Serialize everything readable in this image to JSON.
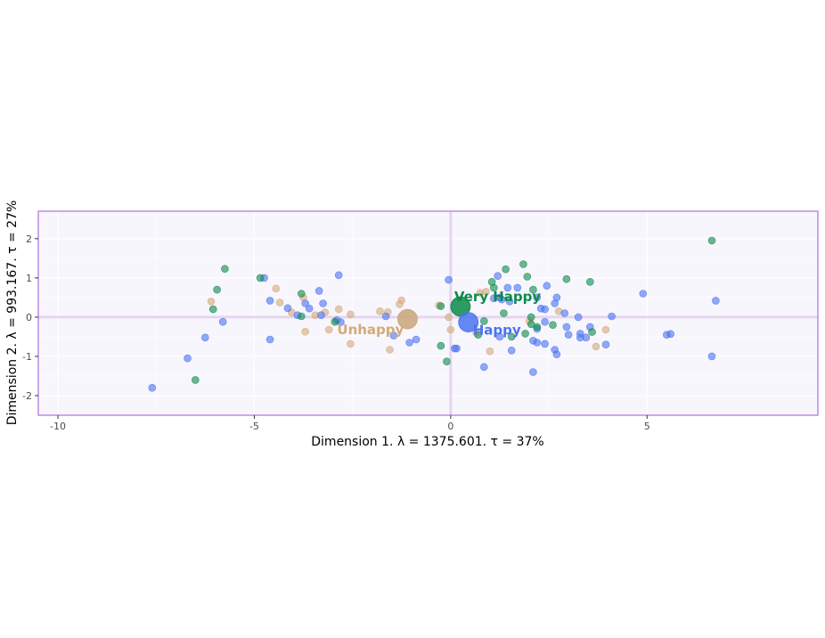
{
  "chart_data": {
    "type": "scatter",
    "xlabel": "Dimension 1.   λ = 1375.601.  τ = 37%",
    "ylabel": "Dimension 2.   λ = 993.167.   τ = 27%",
    "xlim": [
      -10.5,
      9.35
    ],
    "ylim": [
      -2.5,
      2.7
    ],
    "x_ticks": [
      -10,
      -5,
      0,
      5
    ],
    "y_ticks": [
      -2,
      -1,
      0,
      1,
      2
    ],
    "x_tick_labels": [
      "-10",
      "-5",
      "0",
      "5"
    ],
    "y_tick_labels": [
      "-2",
      "-1",
      "0",
      "1",
      "2"
    ],
    "grid": true,
    "colors": {
      "panel_background": "#f8f6fd",
      "panel_border": "#b070e0",
      "reference_line": "#e6d5f0",
      "very_happy": "#0b8a4a",
      "happy": "#4a73f0",
      "unhappy": "#d4aa78"
    },
    "categories_centroids": [
      {
        "label": "Very Happy",
        "x": 0.25,
        "y": 0.27,
        "color": "#0b8a4a",
        "label_color": "#0b8a4a"
      },
      {
        "label": "Happy",
        "x": 0.45,
        "y": -0.13,
        "color": "#4a73f0",
        "label_color": "#4a73f0"
      },
      {
        "label": "Unhappy",
        "x": -1.1,
        "y": -0.05,
        "color": "#c9a57a",
        "label_color": "#d4aa78"
      }
    ],
    "series": [
      {
        "name": "Very Happy",
        "color": "#0b8a4a",
        "points": [
          [
            6.65,
            1.95
          ],
          [
            -5.75,
            1.23
          ],
          [
            -4.85,
            1.0
          ],
          [
            -5.95,
            0.7
          ],
          [
            -6.05,
            0.2
          ],
          [
            -6.5,
            -1.6
          ],
          [
            -3.8,
            0.6
          ],
          [
            -3.8,
            0.02
          ],
          [
            -2.95,
            -0.12
          ],
          [
            -0.25,
            0.28
          ],
          [
            -0.25,
            -0.73
          ],
          [
            -0.1,
            -1.13
          ],
          [
            1.05,
            0.9
          ],
          [
            1.4,
            1.22
          ],
          [
            1.85,
            1.35
          ],
          [
            1.95,
            1.03
          ],
          [
            1.1,
            0.75
          ],
          [
            2.1,
            0.7
          ],
          [
            2.95,
            0.97
          ],
          [
            3.55,
            0.9
          ],
          [
            1.35,
            0.1
          ],
          [
            0.85,
            -0.1
          ],
          [
            0.7,
            -0.45
          ],
          [
            1.55,
            -0.5
          ],
          [
            1.9,
            -0.42
          ],
          [
            2.05,
            0.0
          ],
          [
            2.2,
            -0.25
          ],
          [
            2.6,
            -0.2
          ],
          [
            3.6,
            -0.38
          ],
          [
            2.05,
            -0.18
          ]
        ]
      },
      {
        "name": "Happy",
        "color": "#4a73f0",
        "points": [
          [
            -7.6,
            -1.8
          ],
          [
            -6.7,
            -1.05
          ],
          [
            -6.25,
            -0.52
          ],
          [
            -5.8,
            -0.12
          ],
          [
            -4.75,
            1.0
          ],
          [
            -4.6,
            0.42
          ],
          [
            -4.6,
            -0.57
          ],
          [
            -4.15,
            0.23
          ],
          [
            -3.9,
            0.05
          ],
          [
            -3.7,
            0.35
          ],
          [
            -3.6,
            0.22
          ],
          [
            -3.35,
            0.67
          ],
          [
            -3.25,
            0.35
          ],
          [
            -3.3,
            0.05
          ],
          [
            -2.85,
            1.07
          ],
          [
            -2.9,
            -0.08
          ],
          [
            -2.8,
            -0.13
          ],
          [
            -1.65,
            0.02
          ],
          [
            -1.45,
            -0.47
          ],
          [
            -1.05,
            -0.65
          ],
          [
            -0.88,
            -0.57
          ],
          [
            -0.05,
            0.95
          ],
          [
            0.1,
            -0.8
          ],
          [
            0.15,
            -0.8
          ],
          [
            0.85,
            -1.27
          ],
          [
            1.2,
            1.05
          ],
          [
            1.45,
            0.75
          ],
          [
            1.7,
            0.75
          ],
          [
            1.25,
            0.5
          ],
          [
            1.5,
            0.4
          ],
          [
            2.2,
            0.5
          ],
          [
            2.45,
            0.8
          ],
          [
            2.7,
            0.5
          ],
          [
            2.3,
            0.22
          ],
          [
            2.4,
            0.2
          ],
          [
            2.65,
            0.35
          ],
          [
            2.9,
            0.1
          ],
          [
            3.25,
            0.0
          ],
          [
            4.1,
            0.02
          ],
          [
            3.55,
            -0.25
          ],
          [
            2.95,
            -0.25
          ],
          [
            3.0,
            -0.45
          ],
          [
            3.3,
            -0.42
          ],
          [
            3.3,
            -0.52
          ],
          [
            3.45,
            -0.52
          ],
          [
            2.1,
            -0.6
          ],
          [
            2.2,
            -0.65
          ],
          [
            2.4,
            -0.68
          ],
          [
            2.65,
            -0.83
          ],
          [
            2.7,
            -0.95
          ],
          [
            1.55,
            -0.85
          ],
          [
            2.1,
            -1.4
          ],
          [
            1.25,
            -0.5
          ],
          [
            2.2,
            -0.3
          ],
          [
            2.4,
            -0.12
          ],
          [
            3.95,
            -0.7
          ],
          [
            4.9,
            0.6
          ],
          [
            5.5,
            -0.45
          ],
          [
            5.6,
            -0.43
          ],
          [
            6.65,
            -1.0
          ],
          [
            6.75,
            0.42
          ],
          [
            1.1,
            0.48
          ],
          [
            1.3,
            0.45
          ]
        ]
      },
      {
        "name": "Unhappy",
        "color": "#d4aa78",
        "points": [
          [
            -6.1,
            0.4
          ],
          [
            -4.45,
            0.73
          ],
          [
            -4.35,
            0.37
          ],
          [
            -4.05,
            0.12
          ],
          [
            -3.75,
            0.5
          ],
          [
            -3.7,
            -0.37
          ],
          [
            -3.45,
            0.05
          ],
          [
            -3.2,
            0.12
          ],
          [
            -3.1,
            -0.32
          ],
          [
            -2.85,
            0.2
          ],
          [
            -2.55,
            0.07
          ],
          [
            -2.55,
            -0.68
          ],
          [
            -1.8,
            0.15
          ],
          [
            -1.6,
            0.13
          ],
          [
            -1.55,
            -0.83
          ],
          [
            -1.3,
            0.33
          ],
          [
            -1.25,
            0.43
          ],
          [
            -0.3,
            0.3
          ],
          [
            -0.05,
            0.0
          ],
          [
            0.0,
            -0.32
          ],
          [
            0.75,
            0.62
          ],
          [
            0.9,
            0.65
          ],
          [
            1.0,
            -0.87
          ],
          [
            2.75,
            0.15
          ],
          [
            3.7,
            -0.75
          ],
          [
            3.95,
            -0.32
          ],
          [
            2.0,
            -0.1
          ],
          [
            0.65,
            -0.4
          ]
        ]
      }
    ]
  }
}
